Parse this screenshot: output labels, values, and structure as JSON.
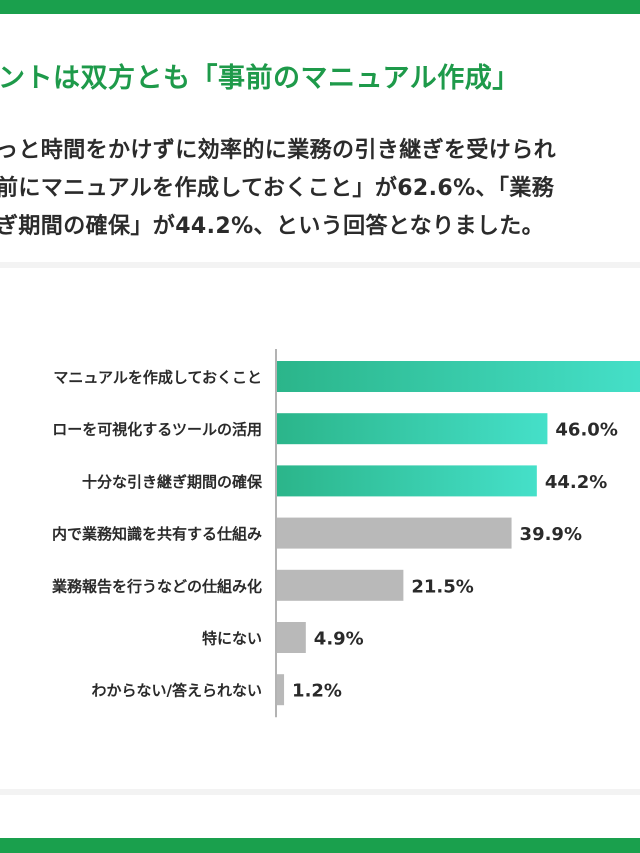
{
  "heading": "ントは双方とも「事前のマニュアル作成」",
  "body_lines": [
    "っと時間をかけずに効率的に業務の引き継ぎを受けられ",
    "前にマニュアルを作成しておくこと」が62.6%、「業務",
    "ぎ期間の確保」が44.2%、という回答となりました。"
  ],
  "colors": {
    "accent": "#1aa04d",
    "bar_highlight_start": "#2bb58a",
    "bar_highlight_end": "#45e0c9",
    "bar_gray": "#b9b9b9"
  },
  "chart_data": {
    "type": "bar",
    "orientation": "horizontal",
    "categories": [
      "マニュアルを作成しておくこと",
      "ローを可視化するツールの活用",
      "十分な引き継ぎ期間の確保",
      "内で業務知識を共有する仕組み",
      "業務報告を行うなどの仕組み化",
      "特にない",
      "わからない/答えられない"
    ],
    "values": [
      62.6,
      46.0,
      44.2,
      39.9,
      21.5,
      4.9,
      1.2
    ],
    "value_labels": [
      "",
      "46.0%",
      "44.2%",
      "39.9%",
      "21.5%",
      "4.9%",
      "1.2%"
    ],
    "highlighted": [
      true,
      true,
      true,
      false,
      false,
      false,
      false
    ],
    "title": "",
    "xlabel": "",
    "ylabel": "",
    "xlim": [
      0,
      62.6
    ]
  }
}
